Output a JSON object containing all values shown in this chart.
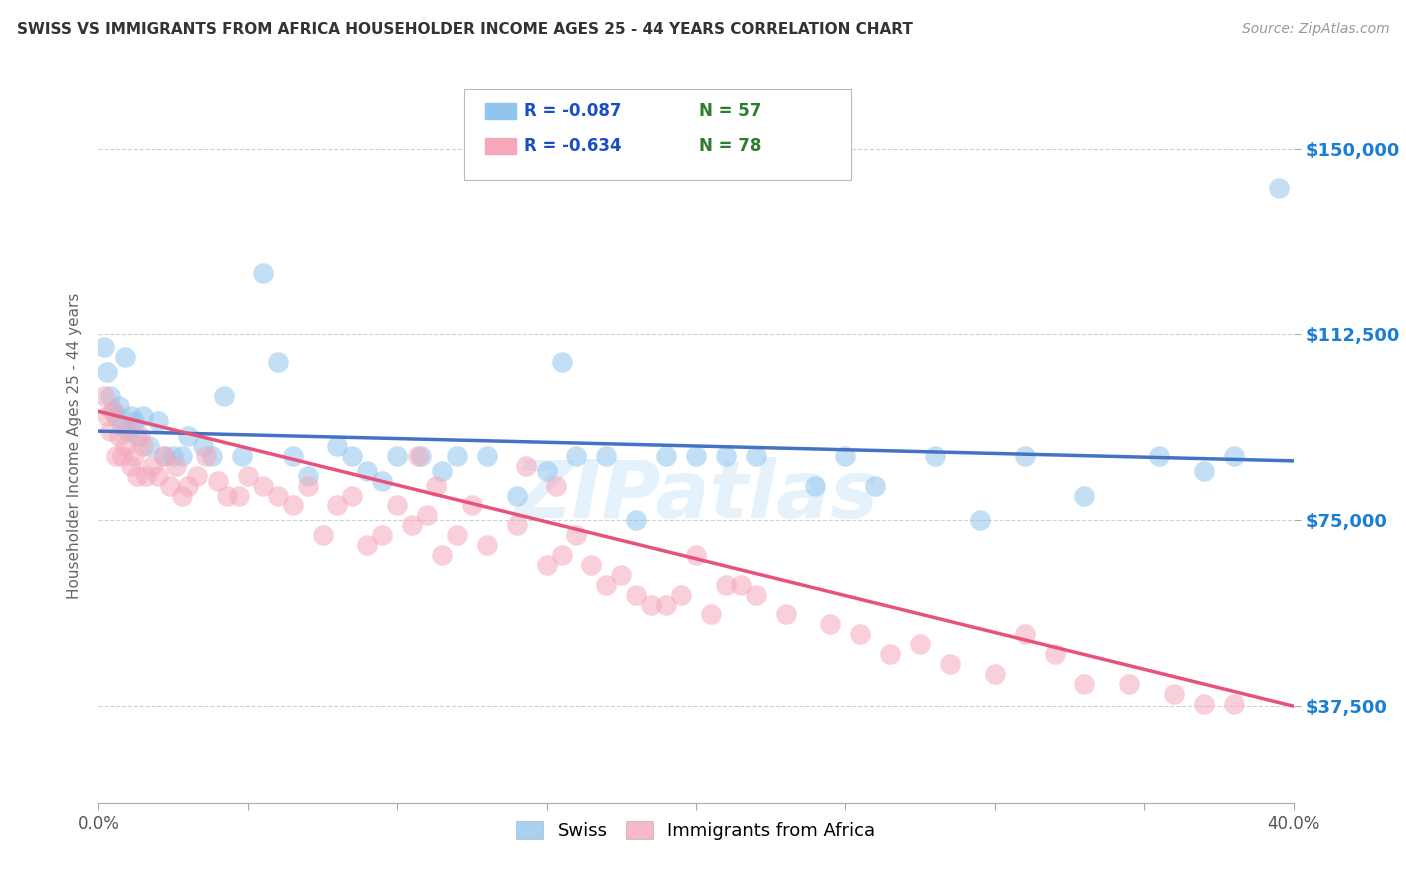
{
  "title": "SWISS VS IMMIGRANTS FROM AFRICA HOUSEHOLDER INCOME AGES 25 - 44 YEARS CORRELATION CHART",
  "source": "Source: ZipAtlas.com",
  "ylabel": "Householder Income Ages 25 - 44 years",
  "ytick_labels": [
    "$37,500",
    "$75,000",
    "$112,500",
    "$150,000"
  ],
  "ytick_vals": [
    37500,
    75000,
    112500,
    150000
  ],
  "ymin": 18000,
  "ymax": 162000,
  "xmin": 0.0,
  "xmax": 0.4,
  "swiss_R": "-0.087",
  "swiss_N": "57",
  "africa_R": "-0.634",
  "africa_N": "78",
  "swiss_color": "#92C5EE",
  "africa_color": "#F5A8BA",
  "swiss_line_color": "#4472C4",
  "africa_line_color": "#E8527A",
  "legend_R_color": "#1A4FC4",
  "legend_N_color": "#2E7D2E",
  "watermark": "ZIPatlas",
  "background_color": "#ffffff",
  "grid_color": "#cccccc",
  "swiss_x": [
    0.002,
    0.003,
    0.004,
    0.005,
    0.006,
    0.007,
    0.008,
    0.009,
    0.01,
    0.011,
    0.012,
    0.013,
    0.015,
    0.017,
    0.02,
    0.022,
    0.025,
    0.028,
    0.03,
    0.035,
    0.038,
    0.042,
    0.048,
    0.055,
    0.06,
    0.065,
    0.07,
    0.08,
    0.085,
    0.09,
    0.095,
    0.1,
    0.108,
    0.115,
    0.12,
    0.13,
    0.14,
    0.15,
    0.155,
    0.16,
    0.17,
    0.18,
    0.19,
    0.2,
    0.21,
    0.22,
    0.24,
    0.25,
    0.26,
    0.28,
    0.295,
    0.31,
    0.33,
    0.355,
    0.37,
    0.38,
    0.395
  ],
  "swiss_y": [
    110000,
    105000,
    100000,
    97000,
    96000,
    98000,
    94000,
    108000,
    93000,
    96000,
    95000,
    92000,
    96000,
    90000,
    95000,
    88000,
    88000,
    88000,
    92000,
    90000,
    88000,
    100000,
    88000,
    125000,
    107000,
    88000,
    84000,
    90000,
    88000,
    85000,
    83000,
    88000,
    88000,
    85000,
    88000,
    88000,
    80000,
    85000,
    107000,
    88000,
    88000,
    75000,
    88000,
    88000,
    88000,
    88000,
    82000,
    88000,
    82000,
    88000,
    75000,
    88000,
    80000,
    88000,
    85000,
    88000,
    142000
  ],
  "africa_x": [
    0.002,
    0.003,
    0.004,
    0.005,
    0.006,
    0.007,
    0.008,
    0.009,
    0.01,
    0.011,
    0.012,
    0.013,
    0.014,
    0.015,
    0.016,
    0.018,
    0.02,
    0.022,
    0.024,
    0.026,
    0.028,
    0.03,
    0.033,
    0.036,
    0.04,
    0.043,
    0.047,
    0.05,
    0.055,
    0.06,
    0.065,
    0.07,
    0.075,
    0.08,
    0.085,
    0.09,
    0.095,
    0.1,
    0.105,
    0.11,
    0.115,
    0.12,
    0.125,
    0.13,
    0.14,
    0.15,
    0.155,
    0.16,
    0.165,
    0.17,
    0.175,
    0.18,
    0.19,
    0.2,
    0.21,
    0.22,
    0.23,
    0.245,
    0.255,
    0.265,
    0.275,
    0.285,
    0.3,
    0.31,
    0.32,
    0.33,
    0.345,
    0.36,
    0.37,
    0.38,
    0.185,
    0.195,
    0.205,
    0.215,
    0.107,
    0.113,
    0.143,
    0.153
  ],
  "africa_y": [
    100000,
    96000,
    93000,
    97000,
    88000,
    92000,
    88000,
    90000,
    94000,
    86000,
    88000,
    84000,
    92000,
    90000,
    84000,
    86000,
    84000,
    88000,
    82000,
    86000,
    80000,
    82000,
    84000,
    88000,
    83000,
    80000,
    80000,
    84000,
    82000,
    80000,
    78000,
    82000,
    72000,
    78000,
    80000,
    70000,
    72000,
    78000,
    74000,
    76000,
    68000,
    72000,
    78000,
    70000,
    74000,
    66000,
    68000,
    72000,
    66000,
    62000,
    64000,
    60000,
    58000,
    68000,
    62000,
    60000,
    56000,
    54000,
    52000,
    48000,
    50000,
    46000,
    44000,
    52000,
    48000,
    42000,
    42000,
    40000,
    38000,
    38000,
    58000,
    60000,
    56000,
    62000,
    88000,
    82000,
    86000,
    82000
  ]
}
